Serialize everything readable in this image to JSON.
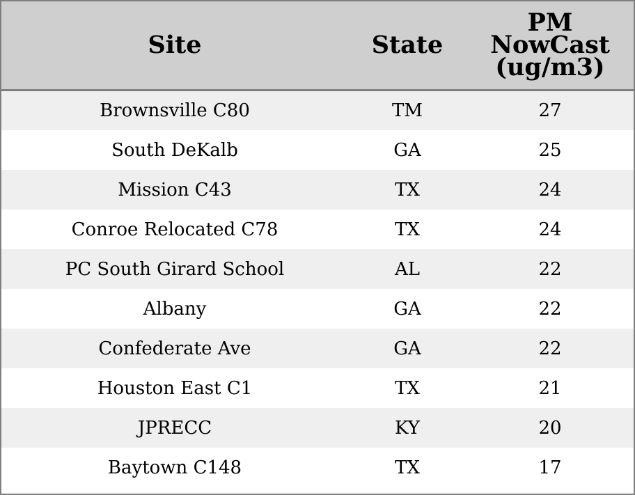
{
  "table": {
    "headers": {
      "site": "Site",
      "state": "State",
      "pm_line1": "PM",
      "pm_line2": "NowCast",
      "pm_line3": "(ug/m3)"
    },
    "rows": [
      {
        "site": "Brownsville C80",
        "state": "TM",
        "pm": "27"
      },
      {
        "site": "South DeKalb",
        "state": "GA",
        "pm": "25"
      },
      {
        "site": "Mission C43",
        "state": "TX",
        "pm": "24"
      },
      {
        "site": "Conroe Relocated C78",
        "state": "TX",
        "pm": "24"
      },
      {
        "site": "PC South Girard School",
        "state": "AL",
        "pm": "22"
      },
      {
        "site": "Albany",
        "state": "GA",
        "pm": "22"
      },
      {
        "site": "Confederate Ave",
        "state": "GA",
        "pm": "22"
      },
      {
        "site": "Houston East C1",
        "state": "TX",
        "pm": "21"
      },
      {
        "site": "JPRECC",
        "state": "KY",
        "pm": "20"
      },
      {
        "site": "Baytown C148",
        "state": "TX",
        "pm": "17"
      }
    ]
  },
  "colors": {
    "header_bg": "#cfcfcf",
    "row_alt_bg": "#efefef",
    "row_bg": "#ffffff",
    "border": "#7f7f7f"
  }
}
